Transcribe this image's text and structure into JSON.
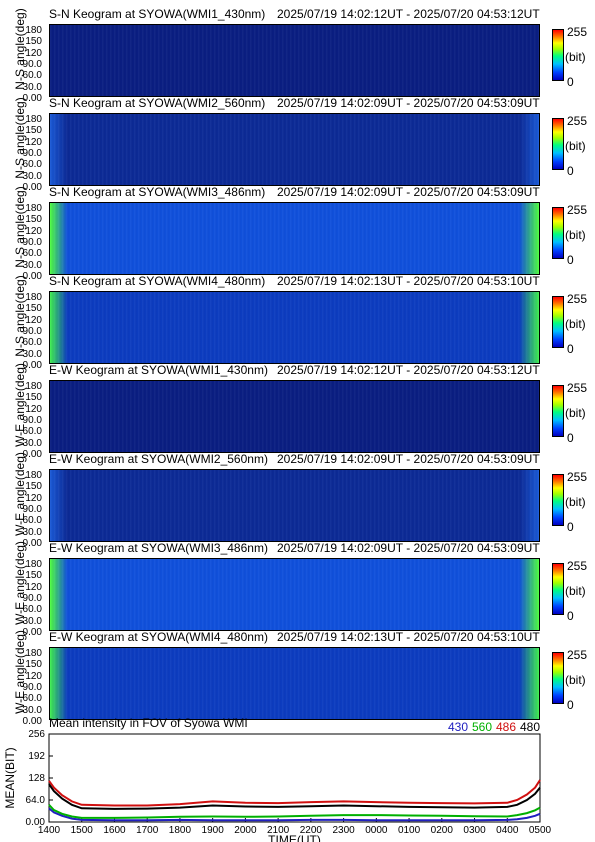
{
  "colorbar": {
    "max_label": "255",
    "min_label": "0",
    "unit_label": "(bit)"
  },
  "panels": [
    {
      "title": "S-N Keogram at SYOWA(WMI1_430nm)",
      "time_range": "2025/07/19 14:02:12UT - 2025/07/20 04:53:12UT",
      "ylabel": "N-S angle(deg)",
      "base_color": "#0a1e82",
      "edge_color": "#0a1e82"
    },
    {
      "title": "S-N Keogram at SYOWA(WMI2_560nm)",
      "time_range": "2025/07/19 14:02:09UT - 2025/07/20 04:53:09UT",
      "ylabel": "N-S angle(deg)",
      "base_color": "#0c2a96",
      "edge_color": "#1a5ad8"
    },
    {
      "title": "S-N Keogram at SYOWA(WMI3_486nm)",
      "time_range": "2025/07/19 14:02:09UT - 2025/07/20 04:53:09UT",
      "ylabel": "N-S angle(deg)",
      "base_color": "#1050dc",
      "edge_color": "#50ff40"
    },
    {
      "title": "S-N Keogram at SYOWA(WMI4_480nm)",
      "time_range": "2025/07/19 14:02:13UT - 2025/07/20 04:53:10UT",
      "ylabel": "N-S angle(deg)",
      "base_color": "#0c3cc0",
      "edge_color": "#40f050"
    },
    {
      "title": "E-W Keogram at SYOWA(WMI1_430nm)",
      "time_range": "2025/07/19 14:02:12UT - 2025/07/20 04:53:12UT",
      "ylabel": "W-E angle(deg)",
      "base_color": "#0a1e82",
      "edge_color": "#0a1e82"
    },
    {
      "title": "E-W Keogram at SYOWA(WMI2_560nm)",
      "time_range": "2025/07/19 14:02:09UT - 2025/07/20 04:53:09UT",
      "ylabel": "W-E angle(deg)",
      "base_color": "#0c2a96",
      "edge_color": "#1a5ad8"
    },
    {
      "title": "E-W Keogram at SYOWA(WMI3_486nm)",
      "time_range": "2025/07/19 14:02:09UT - 2025/07/20 04:53:09UT",
      "ylabel": "W-E angle(deg)",
      "base_color": "#1050dc",
      "edge_color": "#50ff40"
    },
    {
      "title": "E-W Keogram at SYOWA(WMI4_480nm)",
      "time_range": "2025/07/19 14:02:13UT - 2025/07/20 04:53:10UT",
      "ylabel": "W-E angle(deg)",
      "base_color": "#0c3cc0",
      "edge_color": "#40f050"
    }
  ],
  "angle_ticks": [
    "180",
    "150",
    "120",
    "90.0",
    "60.0",
    "30.0",
    "0.00"
  ],
  "chart_data": {
    "type": "line",
    "title": "Mean intensity in FOV of Syowa WMI",
    "xlabel": "TIME(UT)",
    "ylabel": "MEAN(BIT)",
    "ylim": [
      0,
      256
    ],
    "yticks": [
      "256",
      "192",
      "128",
      "64.0",
      "0.00"
    ],
    "xticks": [
      "1400",
      "1500",
      "1600",
      "1700",
      "1800",
      "1900",
      "2000",
      "2100",
      "2200",
      "2300",
      "0000",
      "0100",
      "0200",
      "0300",
      "0400",
      "0500"
    ],
    "x": [
      0,
      0.15,
      0.4,
      0.7,
      1,
      2,
      3,
      4,
      5,
      6,
      7,
      8,
      9,
      10,
      11,
      12,
      13,
      14,
      14.3,
      14.6,
      14.85,
      15
    ],
    "series": [
      {
        "name": "430",
        "color": "#2020c0",
        "values": [
          40,
          28,
          18,
          10,
          6,
          5,
          5,
          6,
          5,
          5,
          5,
          6,
          6,
          5,
          5,
          5,
          5,
          6,
          8,
          12,
          18,
          24
        ]
      },
      {
        "name": "560",
        "color": "#00b000",
        "values": [
          50,
          35,
          24,
          16,
          12,
          12,
          13,
          15,
          16,
          15,
          16,
          18,
          20,
          20,
          19,
          18,
          17,
          16,
          20,
          26,
          34,
          42
        ]
      },
      {
        "name": "486",
        "color": "#d01010",
        "values": [
          120,
          100,
          78,
          60,
          50,
          48,
          48,
          52,
          60,
          56,
          55,
          58,
          60,
          58,
          56,
          55,
          54,
          56,
          64,
          80,
          100,
          122
        ]
      },
      {
        "name": "480",
        "color": "#000000",
        "values": [
          110,
          90,
          68,
          50,
          40,
          38,
          39,
          42,
          48,
          45,
          44,
          46,
          48,
          46,
          44,
          43,
          42,
          44,
          50,
          64,
          82,
          100
        ]
      }
    ]
  }
}
